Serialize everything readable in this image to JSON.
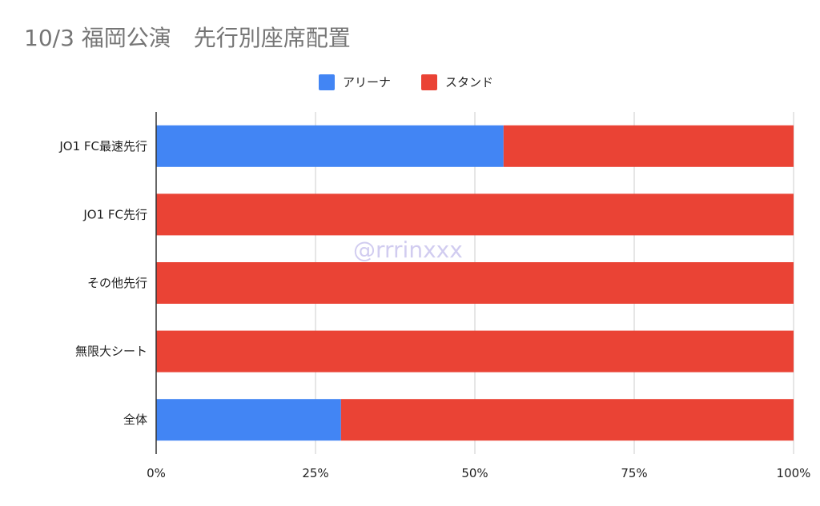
{
  "chart_data": {
    "type": "bar",
    "orientation": "horizontal",
    "stacked": true,
    "normalized": true,
    "title": "10/3 福岡公演　先行別座席配置",
    "categories": [
      "JO1 FC最速先行",
      "JO1 FC先行",
      "その他先行",
      "無限大シート",
      "全体"
    ],
    "series": [
      {
        "name": "アリーナ",
        "color": "#4285f4",
        "values": [
          54.5,
          0,
          0,
          0,
          29
        ]
      },
      {
        "name": "スタンド",
        "color": "#ea4335",
        "values": [
          45.5,
          100,
          100,
          100,
          71
        ]
      }
    ],
    "xlim": [
      0,
      100
    ],
    "xticks": [
      "0%",
      "25%",
      "50%",
      "75%",
      "100%"
    ],
    "legend_position": "top",
    "grid": true
  },
  "watermark": "@rrrinxxx"
}
